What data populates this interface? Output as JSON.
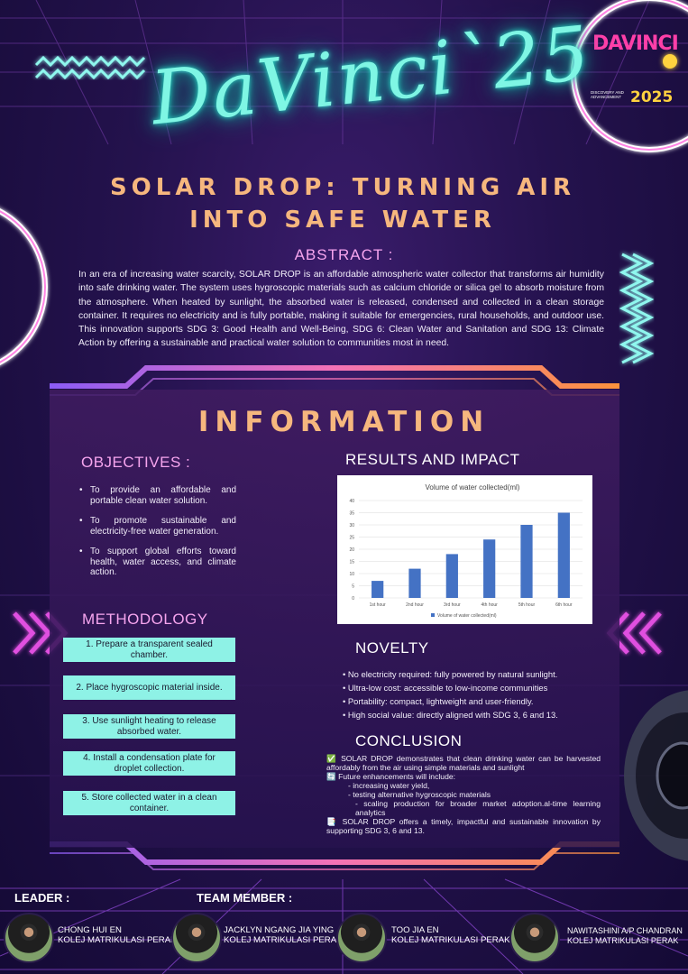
{
  "header": {
    "logo_text": "DaVinci`25",
    "badge_letters": "DAVINCI",
    "badge_year": "2025",
    "badge_tagline": "DISCOVERY AND ADVANCEMENT",
    "title_line1": "SOLAR DROP: TURNING AIR",
    "title_line2": "INTO SAFE WATER"
  },
  "abstract": {
    "heading": "ABSTRACT :",
    "text": "In an era of increasing water scarcity, SOLAR DROP is an affordable atmospheric water collector that transforms air humidity into safe drinking water. The system uses hygroscopic materials such as calcium chloride or silica gel to absorb moisture from the atmosphere. When heated by sunlight, the absorbed water is released, condensed and collected in a clean storage container. It requires no electricity and is fully portable, making it suitable for emergencies, rural households, and outdoor use. This innovation supports SDG 3: Good Health and Well-Being, SDG 6: Clean Water and Sanitation and SDG 13: Climate Action by offering a sustainable and practical water solution to communities most in need."
  },
  "information": {
    "heading": "INFORMATION",
    "objectives_heading": "OBJECTIVES :",
    "objectives": [
      "To provide an affordable and portable clean water solution.",
      "To promote sustainable and electricity-free water generation.",
      "To support global efforts toward health, water access, and climate action."
    ],
    "methodology_heading": "METHODOLOGY",
    "methodology_steps": [
      "1. Prepare a transparent sealed chamber.",
      "2. Place hygroscopic material inside.",
      "3. Use sunlight heating to release absorbed water.",
      "4. Install a condensation plate for droplet collection.",
      "5. Store collected water in a clean container."
    ],
    "results_heading": "RESULTS AND IMPACT",
    "novelty_heading": "NOVELTY",
    "novelty_items": [
      "• No electricity required: fully powered by natural sunlight.",
      "• Ultra-low cost: accessible to low-income communities",
      "• Portability: compact, lightweight and user-friendly.",
      "• High social value: directly aligned with SDG 3, 6 and 13."
    ],
    "conclusion_heading": "CONCLUSION",
    "conclusion_lines": [
      "✅ SOLAR DROP demonstrates that clean drinking water can be harvested affordably from the air using simple materials and sunlight",
      "🔄 Future enhancements will include:",
      "- increasing water yield,",
      "- testing alternative hygroscopic materials",
      "- scaling production for broader market adoption.al-time learning analytics",
      "📑 SOLAR DROP offers a timely, impactful and sustainable innovation by supporting SDG 3, 6 and 13."
    ]
  },
  "chart_data": {
    "type": "bar",
    "title": "Volume of water collected(ml)",
    "categories": [
      "1st hour",
      "2nd hour",
      "3rd hour",
      "4th hour",
      "5th hour",
      "6th hour"
    ],
    "series": [
      {
        "name": "Volume of water collected(ml)",
        "values": [
          7,
          12,
          18,
          24,
          30,
          35
        ]
      }
    ],
    "ylim": [
      0,
      40
    ],
    "yticks": [
      0,
      5,
      10,
      15,
      20,
      25,
      30,
      35,
      40
    ],
    "grid": true,
    "legend": "bottom",
    "bar_color": "#4472c4"
  },
  "team": {
    "leader_heading": "LEADER :",
    "member_heading": "TEAM MEMBER :",
    "people": [
      {
        "name": "CHONG HUI EN",
        "school": "KOLEJ MATRIKULASI PERAK"
      },
      {
        "name": "JACKLYN NGANG JIA YING",
        "school": "KOLEJ MATRIKULASI PERAK"
      },
      {
        "name": "TOO JIA EN",
        "school": "KOLEJ MATRIKULASI PERAK"
      },
      {
        "name": "NAWITASHINI A/P CHANDRAN",
        "school": "KOLEJ MATRIKULASI PERAK"
      }
    ]
  },
  "colors": {
    "accent_peach": "#f6b77e",
    "accent_pink": "#f6a5ee",
    "neon_teal": "#7ff6e4",
    "step_box": "#8ef2e6"
  }
}
